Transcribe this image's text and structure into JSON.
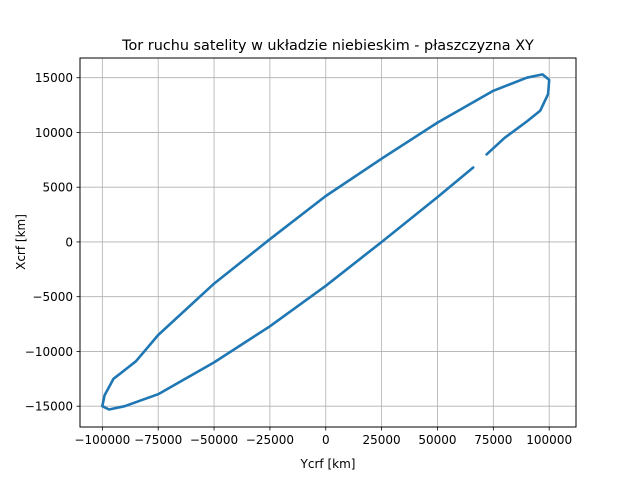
{
  "chart_data": {
    "type": "line",
    "title": "Tor ruchu satelity w układzie niebieskim - płaszczyzna XY",
    "xlabel": "Ycrf [km]",
    "ylabel": "Xcrf [km]",
    "xlim": [
      -110000,
      112000
    ],
    "ylim": [
      -16900,
      16800
    ],
    "grid": true,
    "line_color": "#1f77b4",
    "x_ticks": [
      -100000,
      -75000,
      -50000,
      -25000,
      0,
      25000,
      50000,
      75000,
      100000
    ],
    "x_tick_labels": [
      "−100000",
      "−75000",
      "−50000",
      "−25000",
      "0",
      "25000",
      "50000",
      "75000",
      "100000"
    ],
    "y_ticks": [
      -15000,
      -10000,
      -5000,
      0,
      5000,
      10000,
      15000
    ],
    "y_tick_labels": [
      "−15000",
      "−10000",
      "−5000",
      "0",
      "5000",
      "10000",
      "15000"
    ],
    "series": [
      {
        "x": [
          66000,
          50000,
          25000,
          0,
          -25000,
          -50000,
          -75000,
          -90000,
          -97000,
          -100000,
          -99000,
          -95000,
          -85000,
          -75000,
          -50000,
          -25000,
          0,
          25000,
          50000,
          75000,
          90000,
          97000,
          100000,
          99500,
          96000,
          90000,
          80000,
          72000
        ],
        "y": [
          6800,
          4100,
          0,
          -4000,
          -7700,
          -11000,
          -13900,
          -15000,
          -15300,
          -15000,
          -14000,
          -12500,
          -10900,
          -8500,
          -3800,
          250,
          4200,
          7600,
          10900,
          13800,
          15000,
          15300,
          14800,
          13500,
          12000,
          11000,
          9500,
          8000
        ]
      }
    ]
  }
}
